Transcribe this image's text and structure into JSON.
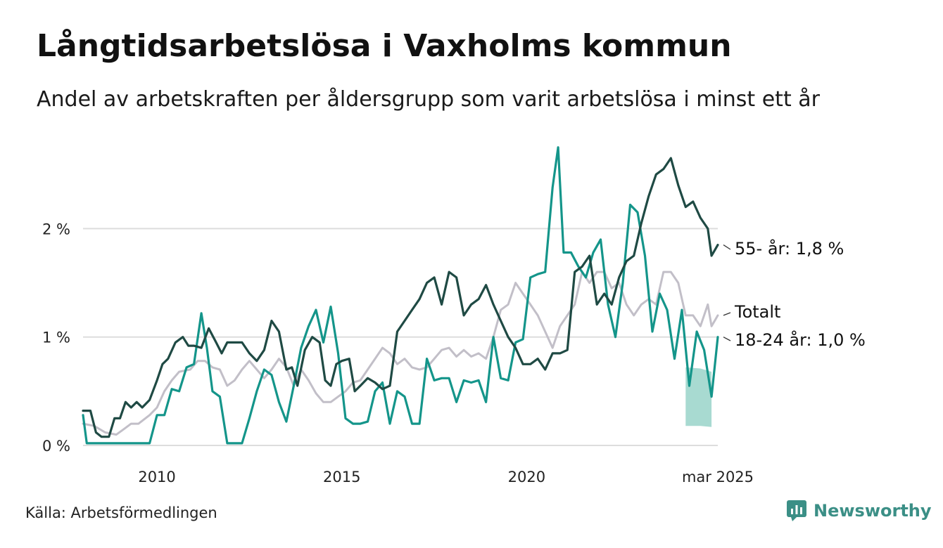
{
  "header": {
    "title": "Långtidsarbetslösa i Vaxholms kommun",
    "subtitle": "Andel av arbetskraften per åldersgrupp som varit arbetslösa i minst ett år"
  },
  "footer": {
    "source": "Källa: Arbetsförmedlingen",
    "brand": "Newsworthy"
  },
  "colors": {
    "age55": "#1f4a44",
    "age18_24": "#14958a",
    "total": "#c2bfc8",
    "band": "#a3d8cf",
    "grid": "#dddddd",
    "brand": "#3b8f86"
  },
  "chart_data": {
    "type": "line",
    "title": "Långtidsarbetslösa i Vaxholms kommun",
    "subtitle": "Andel av arbetskraften per åldersgrupp som varit arbetslösa i minst ett år",
    "xlabel": "",
    "ylabel": "",
    "x_ticks": [
      "2010",
      "2015",
      "2020",
      "mar 2025"
    ],
    "y_ticks": [
      "0 %",
      "1 %",
      "2 %"
    ],
    "ylim": [
      0,
      2.8
    ],
    "xlim": [
      2008.0,
      2025.17
    ],
    "grid": "horizontal",
    "legend": "end-of-line labels",
    "series": [
      {
        "key": "total",
        "name": "Totalt",
        "end_label": "Totalt",
        "points": [
          [
            2008.0,
            0.2
          ],
          [
            2008.3,
            0.18
          ],
          [
            2008.6,
            0.12
          ],
          [
            2008.9,
            0.1
          ],
          [
            2009.1,
            0.15
          ],
          [
            2009.3,
            0.2
          ],
          [
            2009.5,
            0.2
          ],
          [
            2009.8,
            0.28
          ],
          [
            2010.0,
            0.35
          ],
          [
            2010.2,
            0.5
          ],
          [
            2010.4,
            0.6
          ],
          [
            2010.6,
            0.68
          ],
          [
            2010.9,
            0.7
          ],
          [
            2011.1,
            0.78
          ],
          [
            2011.3,
            0.78
          ],
          [
            2011.5,
            0.72
          ],
          [
            2011.7,
            0.7
          ],
          [
            2011.9,
            0.55
          ],
          [
            2012.1,
            0.6
          ],
          [
            2012.3,
            0.7
          ],
          [
            2012.5,
            0.78
          ],
          [
            2012.7,
            0.7
          ],
          [
            2012.9,
            0.62
          ],
          [
            2013.1,
            0.7
          ],
          [
            2013.3,
            0.8
          ],
          [
            2013.5,
            0.72
          ],
          [
            2013.7,
            0.55
          ],
          [
            2013.9,
            0.7
          ],
          [
            2014.1,
            0.6
          ],
          [
            2014.3,
            0.48
          ],
          [
            2014.5,
            0.4
          ],
          [
            2014.7,
            0.4
          ],
          [
            2014.9,
            0.45
          ],
          [
            2015.1,
            0.5
          ],
          [
            2015.3,
            0.58
          ],
          [
            2015.5,
            0.6
          ],
          [
            2015.7,
            0.7
          ],
          [
            2015.9,
            0.8
          ],
          [
            2016.1,
            0.9
          ],
          [
            2016.3,
            0.85
          ],
          [
            2016.5,
            0.75
          ],
          [
            2016.7,
            0.8
          ],
          [
            2016.9,
            0.72
          ],
          [
            2017.1,
            0.7
          ],
          [
            2017.3,
            0.72
          ],
          [
            2017.5,
            0.8
          ],
          [
            2017.7,
            0.88
          ],
          [
            2017.9,
            0.9
          ],
          [
            2018.1,
            0.82
          ],
          [
            2018.3,
            0.88
          ],
          [
            2018.5,
            0.82
          ],
          [
            2018.7,
            0.85
          ],
          [
            2018.9,
            0.8
          ],
          [
            2019.1,
            1.0
          ],
          [
            2019.3,
            1.25
          ],
          [
            2019.5,
            1.3
          ],
          [
            2019.7,
            1.5
          ],
          [
            2019.9,
            1.4
          ],
          [
            2020.1,
            1.3
          ],
          [
            2020.3,
            1.2
          ],
          [
            2020.5,
            1.05
          ],
          [
            2020.7,
            0.9
          ],
          [
            2020.9,
            1.1
          ],
          [
            2021.1,
            1.2
          ],
          [
            2021.3,
            1.3
          ],
          [
            2021.5,
            1.6
          ],
          [
            2021.7,
            1.5
          ],
          [
            2021.9,
            1.6
          ],
          [
            2022.1,
            1.6
          ],
          [
            2022.3,
            1.45
          ],
          [
            2022.5,
            1.5
          ],
          [
            2022.7,
            1.3
          ],
          [
            2022.9,
            1.2
          ],
          [
            2023.1,
            1.3
          ],
          [
            2023.3,
            1.35
          ],
          [
            2023.5,
            1.3
          ],
          [
            2023.7,
            1.6
          ],
          [
            2023.9,
            1.6
          ],
          [
            2024.1,
            1.5
          ],
          [
            2024.3,
            1.2
          ],
          [
            2024.5,
            1.2
          ],
          [
            2024.7,
            1.1
          ],
          [
            2024.9,
            1.3
          ],
          [
            2025.0,
            1.1
          ],
          [
            2025.17,
            1.2
          ]
        ]
      },
      {
        "key": "age55",
        "name": "55- år",
        "end_label": "55- år: 1,8 %",
        "points": [
          [
            2008.0,
            0.32
          ],
          [
            2008.2,
            0.32
          ],
          [
            2008.35,
            0.12
          ],
          [
            2008.5,
            0.08
          ],
          [
            2008.7,
            0.08
          ],
          [
            2008.85,
            0.25
          ],
          [
            2009.0,
            0.25
          ],
          [
            2009.15,
            0.4
          ],
          [
            2009.3,
            0.35
          ],
          [
            2009.45,
            0.4
          ],
          [
            2009.6,
            0.35
          ],
          [
            2009.8,
            0.42
          ],
          [
            2010.0,
            0.6
          ],
          [
            2010.15,
            0.75
          ],
          [
            2010.3,
            0.8
          ],
          [
            2010.5,
            0.95
          ],
          [
            2010.7,
            1.0
          ],
          [
            2010.85,
            0.92
          ],
          [
            2011.0,
            0.92
          ],
          [
            2011.2,
            0.9
          ],
          [
            2011.4,
            1.08
          ],
          [
            2011.6,
            0.95
          ],
          [
            2011.75,
            0.85
          ],
          [
            2011.9,
            0.95
          ],
          [
            2012.1,
            0.95
          ],
          [
            2012.3,
            0.95
          ],
          [
            2012.5,
            0.85
          ],
          [
            2012.7,
            0.78
          ],
          [
            2012.9,
            0.88
          ],
          [
            2013.1,
            1.15
          ],
          [
            2013.3,
            1.05
          ],
          [
            2013.5,
            0.7
          ],
          [
            2013.65,
            0.72
          ],
          [
            2013.8,
            0.55
          ],
          [
            2014.0,
            0.88
          ],
          [
            2014.2,
            1.0
          ],
          [
            2014.4,
            0.95
          ],
          [
            2014.55,
            0.6
          ],
          [
            2014.7,
            0.55
          ],
          [
            2014.85,
            0.75
          ],
          [
            2015.0,
            0.78
          ],
          [
            2015.2,
            0.8
          ],
          [
            2015.35,
            0.5
          ],
          [
            2015.5,
            0.55
          ],
          [
            2015.7,
            0.62
          ],
          [
            2015.9,
            0.58
          ],
          [
            2016.1,
            0.52
          ],
          [
            2016.3,
            0.55
          ],
          [
            2016.5,
            1.05
          ],
          [
            2016.7,
            1.15
          ],
          [
            2016.9,
            1.25
          ],
          [
            2017.1,
            1.35
          ],
          [
            2017.3,
            1.5
          ],
          [
            2017.5,
            1.55
          ],
          [
            2017.7,
            1.3
          ],
          [
            2017.9,
            1.6
          ],
          [
            2018.1,
            1.55
          ],
          [
            2018.3,
            1.2
          ],
          [
            2018.5,
            1.3
          ],
          [
            2018.7,
            1.35
          ],
          [
            2018.9,
            1.48
          ],
          [
            2019.1,
            1.3
          ],
          [
            2019.3,
            1.15
          ],
          [
            2019.5,
            1.0
          ],
          [
            2019.7,
            0.9
          ],
          [
            2019.9,
            0.75
          ],
          [
            2020.1,
            0.75
          ],
          [
            2020.3,
            0.8
          ],
          [
            2020.5,
            0.7
          ],
          [
            2020.7,
            0.85
          ],
          [
            2020.9,
            0.85
          ],
          [
            2021.1,
            0.88
          ],
          [
            2021.3,
            1.6
          ],
          [
            2021.5,
            1.65
          ],
          [
            2021.7,
            1.75
          ],
          [
            2021.9,
            1.3
          ],
          [
            2022.1,
            1.4
          ],
          [
            2022.3,
            1.3
          ],
          [
            2022.5,
            1.55
          ],
          [
            2022.7,
            1.7
          ],
          [
            2022.9,
            1.75
          ],
          [
            2023.1,
            2.05
          ],
          [
            2023.3,
            2.3
          ],
          [
            2023.5,
            2.5
          ],
          [
            2023.7,
            2.55
          ],
          [
            2023.9,
            2.65
          ],
          [
            2024.1,
            2.4
          ],
          [
            2024.3,
            2.2
          ],
          [
            2024.5,
            2.25
          ],
          [
            2024.7,
            2.1
          ],
          [
            2024.9,
            2.0
          ],
          [
            2025.0,
            1.75
          ],
          [
            2025.17,
            1.85
          ]
        ]
      },
      {
        "key": "age18_24",
        "name": "18-24 år",
        "end_label": "18-24 år: 1,0 %",
        "points": [
          [
            2008.0,
            0.28
          ],
          [
            2008.1,
            0.02
          ],
          [
            2008.5,
            0.02
          ],
          [
            2009.0,
            0.02
          ],
          [
            2009.5,
            0.02
          ],
          [
            2009.8,
            0.02
          ],
          [
            2010.0,
            0.28
          ],
          [
            2010.2,
            0.28
          ],
          [
            2010.4,
            0.52
          ],
          [
            2010.6,
            0.5
          ],
          [
            2010.8,
            0.72
          ],
          [
            2011.0,
            0.75
          ],
          [
            2011.2,
            1.22
          ],
          [
            2011.35,
            0.9
          ],
          [
            2011.5,
            0.5
          ],
          [
            2011.7,
            0.45
          ],
          [
            2011.9,
            0.02
          ],
          [
            2012.1,
            0.02
          ],
          [
            2012.3,
            0.02
          ],
          [
            2012.5,
            0.25
          ],
          [
            2012.7,
            0.5
          ],
          [
            2012.9,
            0.7
          ],
          [
            2013.1,
            0.65
          ],
          [
            2013.3,
            0.4
          ],
          [
            2013.5,
            0.22
          ],
          [
            2013.7,
            0.55
          ],
          [
            2013.9,
            0.9
          ],
          [
            2014.1,
            1.1
          ],
          [
            2014.3,
            1.25
          ],
          [
            2014.5,
            0.95
          ],
          [
            2014.7,
            1.28
          ],
          [
            2014.9,
            0.85
          ],
          [
            2015.1,
            0.25
          ],
          [
            2015.3,
            0.2
          ],
          [
            2015.5,
            0.2
          ],
          [
            2015.7,
            0.22
          ],
          [
            2015.9,
            0.5
          ],
          [
            2016.1,
            0.58
          ],
          [
            2016.3,
            0.2
          ],
          [
            2016.5,
            0.5
          ],
          [
            2016.7,
            0.45
          ],
          [
            2016.9,
            0.2
          ],
          [
            2017.1,
            0.2
          ],
          [
            2017.3,
            0.8
          ],
          [
            2017.5,
            0.6
          ],
          [
            2017.7,
            0.62
          ],
          [
            2017.9,
            0.62
          ],
          [
            2018.1,
            0.4
          ],
          [
            2018.3,
            0.6
          ],
          [
            2018.5,
            0.58
          ],
          [
            2018.7,
            0.6
          ],
          [
            2018.9,
            0.4
          ],
          [
            2019.1,
            1.0
          ],
          [
            2019.3,
            0.62
          ],
          [
            2019.5,
            0.6
          ],
          [
            2019.7,
            0.95
          ],
          [
            2019.9,
            0.98
          ],
          [
            2020.1,
            1.55
          ],
          [
            2020.3,
            1.58
          ],
          [
            2020.5,
            1.6
          ],
          [
            2020.7,
            2.38
          ],
          [
            2020.85,
            2.75
          ],
          [
            2021.0,
            1.78
          ],
          [
            2021.2,
            1.78
          ],
          [
            2021.4,
            1.65
          ],
          [
            2021.6,
            1.55
          ],
          [
            2021.8,
            1.78
          ],
          [
            2022.0,
            1.9
          ],
          [
            2022.2,
            1.3
          ],
          [
            2022.4,
            1.0
          ],
          [
            2022.6,
            1.5
          ],
          [
            2022.8,
            2.22
          ],
          [
            2023.0,
            2.15
          ],
          [
            2023.2,
            1.75
          ],
          [
            2023.4,
            1.05
          ],
          [
            2023.6,
            1.4
          ],
          [
            2023.8,
            1.25
          ],
          [
            2024.0,
            0.8
          ],
          [
            2024.2,
            1.25
          ],
          [
            2024.4,
            0.55
          ],
          [
            2024.6,
            1.05
          ],
          [
            2024.8,
            0.88
          ],
          [
            2025.0,
            0.45
          ],
          [
            2025.17,
            1.0
          ]
        ]
      }
    ],
    "uncertainty_band": {
      "series": "age18_24",
      "points": [
        [
          2024.3,
          0.72,
          0.18
        ],
        [
          2024.7,
          0.71,
          0.18
        ],
        [
          2025.0,
          0.68,
          0.17
        ]
      ]
    }
  }
}
